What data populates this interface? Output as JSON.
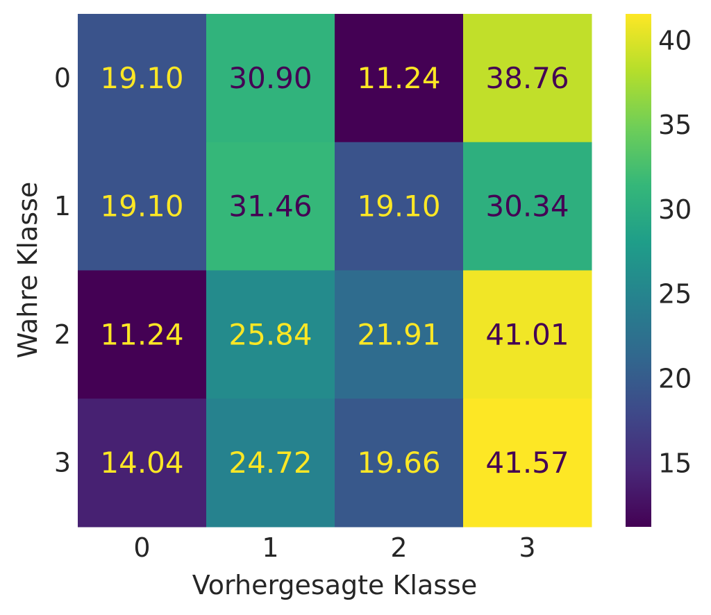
{
  "chart_data": {
    "type": "heatmap",
    "xlabel": "Vorhergesagte Klasse",
    "ylabel": "Wahre Klasse",
    "x_categories": [
      "0",
      "1",
      "2",
      "3"
    ],
    "y_categories": [
      "0",
      "1",
      "2",
      "3"
    ],
    "values": [
      [
        19.1,
        30.9,
        11.24,
        38.76
      ],
      [
        19.1,
        31.46,
        19.1,
        30.34
      ],
      [
        11.24,
        25.84,
        21.91,
        41.01
      ],
      [
        14.04,
        24.72,
        19.66,
        41.57
      ]
    ],
    "value_labels": [
      [
        "19.10",
        "30.90",
        "11.24",
        "38.76"
      ],
      [
        "19.10",
        "31.46",
        "19.10",
        "30.34"
      ],
      [
        "11.24",
        "25.84",
        "21.91",
        "41.01"
      ],
      [
        "14.04",
        "24.72",
        "19.66",
        "41.57"
      ]
    ],
    "colormap": "viridis",
    "colorbar": {
      "range": [
        11.24,
        41.57
      ],
      "ticks": [
        15,
        20,
        25,
        30,
        35,
        40
      ],
      "tick_labels": [
        "15",
        "20",
        "25",
        "30",
        "35",
        "40"
      ]
    },
    "annotation_colors": {
      "on_dark": "#fde725",
      "on_light": "#440154"
    },
    "grid": false
  }
}
